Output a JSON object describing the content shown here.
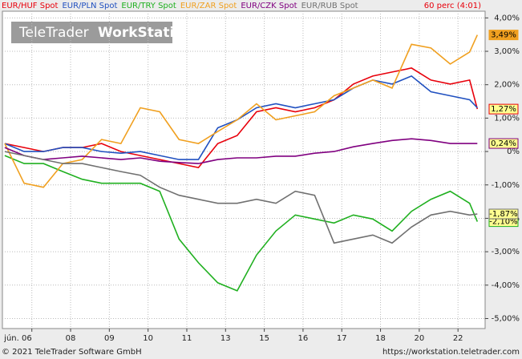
{
  "chart_data": {
    "type": "line",
    "watermark": {
      "brand": "TeleTrader",
      "product": "WorkStation"
    },
    "period": "60 perc (4:01)",
    "footer_left": "© 2021 TeleTrader Software GmbH",
    "footer_right": "https://workstation.teletrader.com",
    "x": [
      0.3,
      0.8,
      1.3,
      1.8,
      2.3,
      2.8,
      3.3,
      3.8,
      4.3,
      4.8,
      5.3,
      5.8,
      6.3,
      6.8,
      7.3,
      7.8,
      8.3,
      8.8,
      9.3,
      9.8,
      10.3,
      10.8,
      11.3,
      11.8,
      12.3,
      12.5
    ],
    "xlim": [
      0.24,
      12.7
    ],
    "xticks": [
      {
        "value": 1,
        "label": "jún. 06"
      },
      {
        "value": 2,
        "label": "08"
      },
      {
        "value": 3,
        "label": "09"
      },
      {
        "value": 4,
        "label": "10"
      },
      {
        "value": 5,
        "label": "11"
      },
      {
        "value": 6,
        "label": "13"
      },
      {
        "value": 7,
        "label": "15"
      },
      {
        "value": 8,
        "label": "16"
      },
      {
        "value": 9,
        "label": "17"
      },
      {
        "value": 10,
        "label": "18"
      },
      {
        "value": 11,
        "label": "20"
      },
      {
        "value": 12,
        "label": "22"
      }
    ],
    "ylim": [
      -5.3,
      4.2
    ],
    "yticks": [
      {
        "value": 4,
        "label": "4,00%"
      },
      {
        "value": 3,
        "label": "3,00%"
      },
      {
        "value": 2,
        "label": "2,00%"
      },
      {
        "value": 1,
        "label": "1,00%"
      },
      {
        "value": 0,
        "label": "0%"
      },
      {
        "value": -1,
        "label": "-1,00%"
      },
      {
        "value": -2,
        "label": "-2,00%"
      },
      {
        "value": -3,
        "label": "-3,00%"
      },
      {
        "value": -4,
        "label": "-4,00%"
      },
      {
        "value": -5,
        "label": "-5,00%"
      }
    ],
    "grid": true,
    "series": [
      {
        "name": "EUR/HUF Spot",
        "color": "#e8000b",
        "end_label": "1,27%",
        "values": [
          0.24,
          0.12,
          0,
          0.12,
          0.12,
          0.24,
          0,
          -0.12,
          -0.24,
          -0.36,
          -0.48,
          0.24,
          0.48,
          1.19,
          1.31,
          1.19,
          1.31,
          1.55,
          2.02,
          2.26,
          2.38,
          2.5,
          2.14,
          2.02,
          2.14,
          1.27
        ]
      },
      {
        "name": "EUR/PLN Spot",
        "color": "#2050c0",
        "values": [
          0.24,
          0,
          0,
          0.12,
          0.12,
          0,
          -0.05,
          0,
          -0.12,
          -0.24,
          -0.24,
          0.71,
          0.95,
          1.31,
          1.43,
          1.31,
          1.43,
          1.55,
          1.9,
          2.14,
          2.02,
          2.26,
          1.79,
          1.67,
          1.55,
          1.31
        ]
      },
      {
        "name": "EUR/TRY Spot",
        "color": "#20b020",
        "end_label": "-2,10%",
        "values": [
          -0.12,
          -0.36,
          -0.36,
          -0.6,
          -0.83,
          -0.95,
          -0.95,
          -0.95,
          -1.19,
          -2.62,
          -3.33,
          -3.93,
          -4.17,
          -3.1,
          -2.38,
          -1.9,
          -2.02,
          -2.14,
          -1.9,
          -2.02,
          -2.38,
          -1.79,
          -1.43,
          -1.19,
          -1.55,
          -2.1
        ]
      },
      {
        "name": "EUR/ZAR Spot",
        "color": "#f0a020",
        "end_label": "3,49%",
        "values": [
          0.24,
          -0.95,
          -1.07,
          -0.36,
          -0.24,
          0.36,
          0.24,
          1.31,
          1.19,
          0.36,
          0.24,
          0.6,
          0.95,
          1.43,
          0.95,
          1.07,
          1.19,
          1.67,
          1.9,
          2.14,
          1.9,
          3.21,
          3.1,
          2.62,
          2.98,
          3.49
        ]
      },
      {
        "name": "EUR/CZK Spot",
        "color": "#800080",
        "end_label": "0,24%",
        "values": [
          0.12,
          -0.12,
          -0.24,
          -0.19,
          -0.14,
          -0.19,
          -0.24,
          -0.19,
          -0.29,
          -0.33,
          -0.36,
          -0.24,
          -0.19,
          -0.19,
          -0.14,
          -0.14,
          -0.05,
          0,
          0.14,
          0.24,
          0.33,
          0.38,
          0.33,
          0.24,
          0.24,
          0.24
        ]
      },
      {
        "name": "EUR/RUB Spot",
        "color": "#707070",
        "end_label": "-1,87%",
        "values": [
          0,
          -0.12,
          -0.24,
          -0.36,
          -0.36,
          -0.48,
          -0.6,
          -0.71,
          -1.07,
          -1.31,
          -1.43,
          -1.55,
          -1.55,
          -1.43,
          -1.55,
          -1.19,
          -1.31,
          -2.74,
          -2.62,
          -2.5,
          -2.74,
          -2.26,
          -1.9,
          -1.79,
          -1.9,
          -1.87
        ]
      }
    ]
  }
}
